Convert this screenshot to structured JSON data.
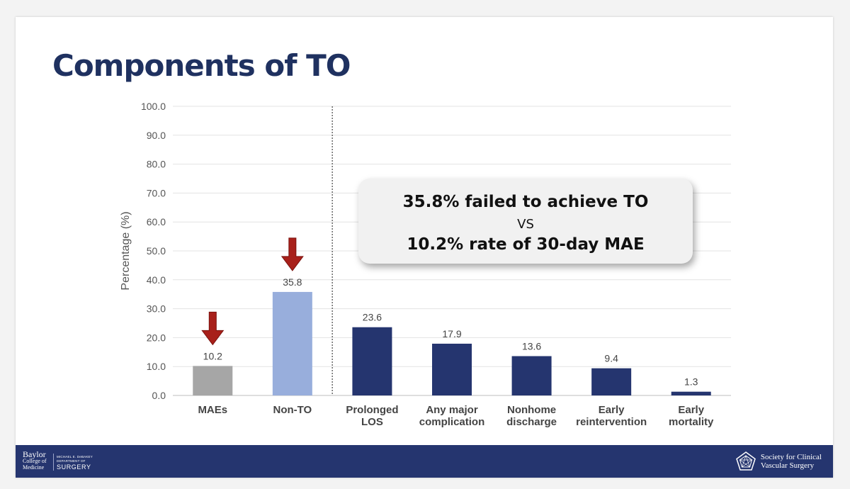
{
  "slide": {
    "title": "Components of TO"
  },
  "chart_data": {
    "type": "bar",
    "ylabel": "Percentage (%)",
    "xlabel": "",
    "ylim": [
      0,
      100
    ],
    "yticks": [
      "0.0",
      "10.0",
      "20.0",
      "30.0",
      "40.0",
      "50.0",
      "60.0",
      "70.0",
      "80.0",
      "90.0",
      "100.0"
    ],
    "grid": true,
    "categories": [
      [
        "MAEs"
      ],
      [
        "Non-TO"
      ],
      [
        "Prolonged",
        "LOS"
      ],
      [
        "Any major",
        "complication"
      ],
      [
        "Nonhome",
        "discharge"
      ],
      [
        "Early",
        "reintervention"
      ],
      [
        "Early",
        "mortality"
      ]
    ],
    "values": [
      10.2,
      35.8,
      23.6,
      17.9,
      13.6,
      9.4,
      1.3
    ],
    "value_labels": [
      "10.2",
      "35.8",
      "23.6",
      "17.9",
      "13.6",
      "9.4",
      "1.3"
    ],
    "bar_colors": [
      "#a6a6a6",
      "#98aedc",
      "#25356f",
      "#25356f",
      "#25356f",
      "#25356f",
      "#25356f"
    ],
    "highlight_arrows_on": [
      0,
      1
    ],
    "arrow_color": "#a8201a",
    "divider_after_category": 1
  },
  "callout": {
    "line1": "35.8% failed to achieve TO",
    "line2": "VS",
    "line3": "10.2% rate of 30-day MAE"
  },
  "footer": {
    "baylor": [
      "Baylor",
      "College of",
      "Medicine"
    ],
    "department": [
      "MICHAEL E. DeBAKEY",
      "DEPARTMENT OF",
      "SURGERY"
    ],
    "society": [
      "Society for Clinical",
      "Vascular Surgery"
    ],
    "background": "#25356f"
  }
}
